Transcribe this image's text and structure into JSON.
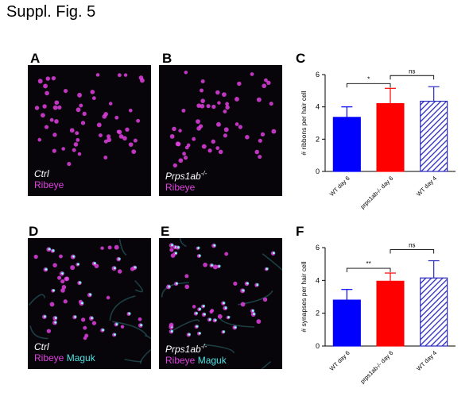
{
  "figure": {
    "title": "Suppl. Fig. 5",
    "panels": {
      "A": {
        "label": "A",
        "line1": "Ctrl",
        "line2a": "Ribeye",
        "line2b": ""
      },
      "B": {
        "label": "B",
        "line1": "Prps1ab",
        "line1sup": "-/-",
        "line2a": "Ribeye",
        "line2b": ""
      },
      "C": {
        "label": "C"
      },
      "D": {
        "label": "D",
        "line1": "Ctrl",
        "line2a": "Ribeye",
        "line2b": "Maguk"
      },
      "E": {
        "label": "E",
        "line1": "Prps1ab",
        "line1sup": "-/-",
        "line2a": "Ribeye",
        "line2b": "Maguk"
      },
      "F": {
        "label": "F"
      }
    }
  },
  "colors": {
    "bar_wt6": "#0000ff",
    "bar_prps": "#ff0000",
    "bar_wt4": "#2b2bbf",
    "magenta": "#e040e0",
    "cyan": "#4fe3e3"
  },
  "chart_data": [
    {
      "panel": "C",
      "type": "bar",
      "categories": [
        "WT day 6",
        "prps1ab-/- day 6",
        "WT day 4"
      ],
      "values": [
        3.35,
        4.2,
        4.35
      ],
      "errors": [
        0.65,
        0.95,
        0.9
      ],
      "patterns": [
        "solid",
        "solid",
        "hatched"
      ],
      "ylabel": "# ribbons per hair cell",
      "ylim": [
        0,
        6
      ],
      "yticks": [
        "0",
        "2",
        "4",
        "6"
      ],
      "significance": [
        {
          "from": 0,
          "to": 1,
          "label": "*"
        },
        {
          "from": 1,
          "to": 2,
          "label": "ns"
        }
      ]
    },
    {
      "panel": "F",
      "type": "bar",
      "categories": [
        "WT day 6",
        "prps1ab-/- day 6",
        "WT day 4"
      ],
      "values": [
        2.8,
        3.95,
        4.15
      ],
      "errors": [
        0.65,
        0.5,
        1.05
      ],
      "patterns": [
        "solid",
        "solid",
        "hatched"
      ],
      "ylabel": "# synapses per hair cell",
      "ylim": [
        0,
        6
      ],
      "yticks": [
        "0",
        "2",
        "4",
        "6"
      ],
      "significance": [
        {
          "from": 0,
          "to": 1,
          "label": "**"
        },
        {
          "from": 1,
          "to": 2,
          "label": "ns"
        }
      ]
    }
  ]
}
